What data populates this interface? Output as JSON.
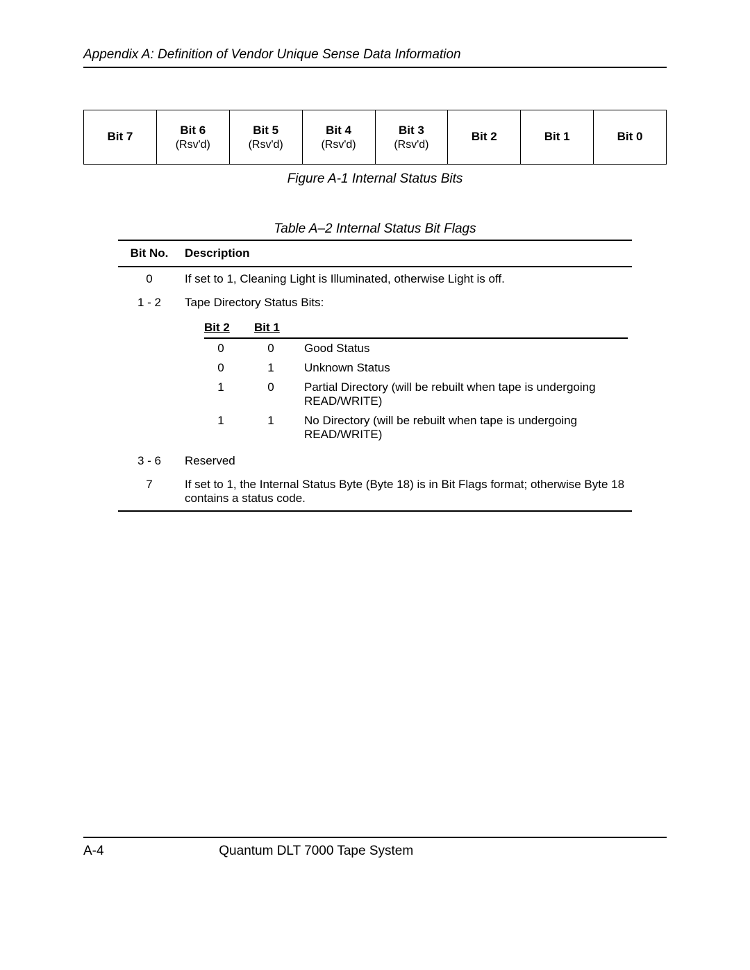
{
  "header": {
    "text": "Appendix A: Definition of Vendor Unique Sense Data Information"
  },
  "bits_figure": {
    "caption": "Figure A-1  Internal Status Bits",
    "cells": [
      {
        "label": "Bit 7",
        "sub": ""
      },
      {
        "label": "Bit 6",
        "sub": "(Rsv'd)"
      },
      {
        "label": "Bit 5",
        "sub": "(Rsv'd)"
      },
      {
        "label": "Bit 4",
        "sub": "(Rsv'd)"
      },
      {
        "label": "Bit 3",
        "sub": "(Rsv'd)"
      },
      {
        "label": "Bit 2",
        "sub": ""
      },
      {
        "label": "Bit 1",
        "sub": ""
      },
      {
        "label": "Bit 0",
        "sub": ""
      }
    ]
  },
  "flags_table": {
    "caption": "Table A–2  Internal Status Bit Flags",
    "col_bitno": "Bit No.",
    "col_desc": "Description",
    "row0": {
      "bit": "0",
      "desc": "If set to 1, Cleaning Light is Illuminated, otherwise Light is off."
    },
    "row1": {
      "bit": "1 - 2",
      "desc": "Tape Directory Status Bits:"
    },
    "sub": {
      "h1": "Bit 2",
      "h2": "Bit 1",
      "r0": {
        "a": "0",
        "b": "0",
        "d": "Good Status"
      },
      "r1": {
        "a": "0",
        "b": "1",
        "d": "Unknown Status"
      },
      "r2": {
        "a": "1",
        "b": "0",
        "d": "Partial Directory (will be rebuilt when tape is undergoing READ/WRITE)"
      },
      "r3": {
        "a": "1",
        "b": "1",
        "d": "No Directory (will be rebuilt when tape is undergoing READ/WRITE)"
      }
    },
    "row3": {
      "bit": "3 - 6",
      "desc": "Reserved"
    },
    "row7": {
      "bit": "7",
      "desc": "If set to 1, the Internal Status Byte (Byte 18) is in Bit Flags format; otherwise Byte 18 contains a status code."
    }
  },
  "footer": {
    "page": "A-4",
    "title": "Quantum DLT 7000 Tape System"
  }
}
